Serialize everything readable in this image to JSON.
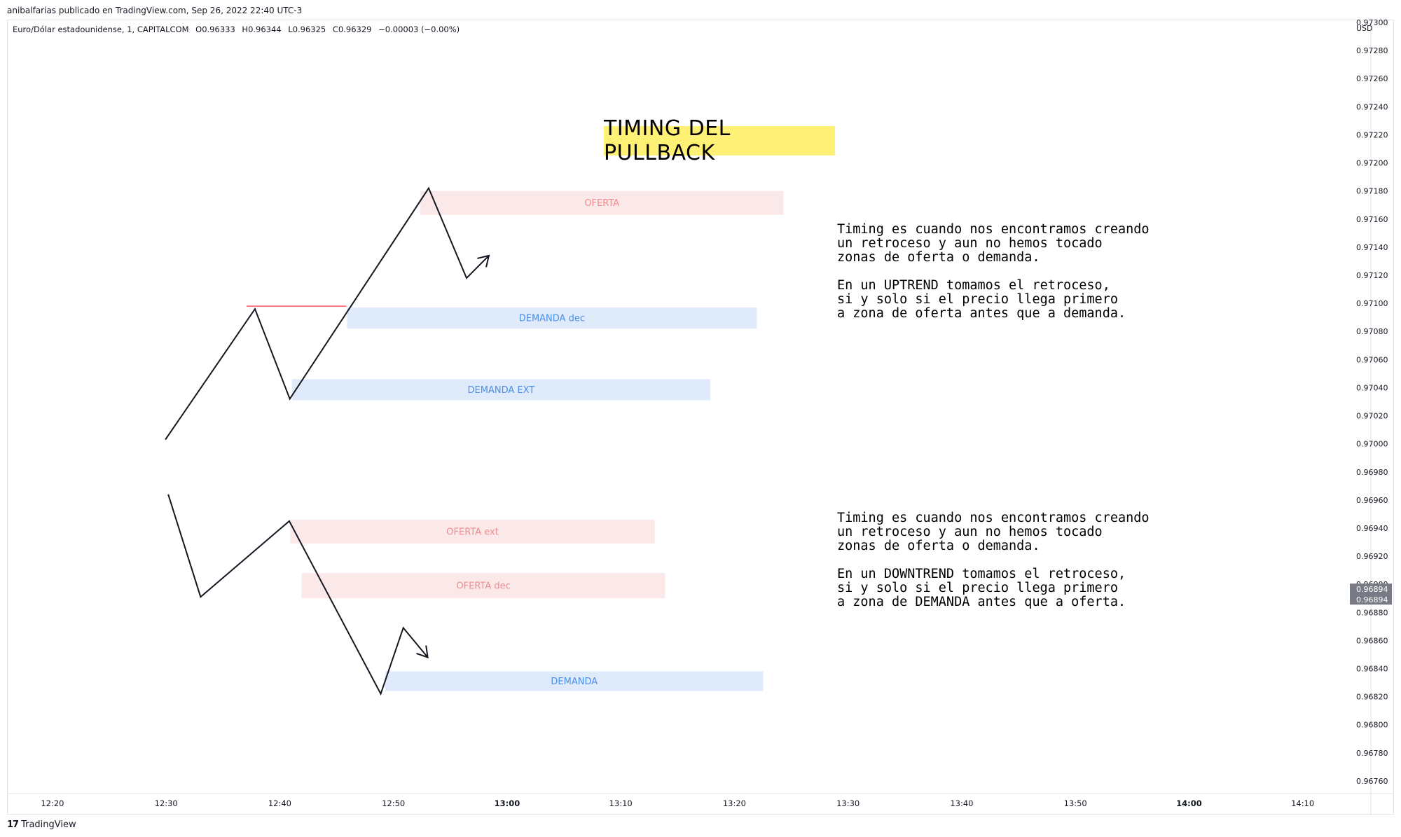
{
  "header": {
    "published": "anibalfarias publicado en TradingView.com, Sep 26, 2022 22:40 UTC-3",
    "symbol": "Euro/Dólar estadounidense, 1, CAPITALCOM",
    "open": "O0.96333",
    "high": "H0.96344",
    "low": "L0.96325",
    "close": "C0.96329",
    "change": "−0.00003 (−0.00%)"
  },
  "footer": {
    "logo_text": "TradingView"
  },
  "title": "TIMING DEL PULLBACK",
  "notes": {
    "uptrend": "Timing es cuando nos encontramos creando\nun retroceso y aun no hemos tocado\nzonas de oferta o demanda.\n\nEn un UPTREND tomamos el retroceso,\nsi y solo si el precio llega primero\na zona de oferta antes que a demanda.",
    "downtrend": "Timing es cuando nos encontramos creando\nun retroceso y aun no hemos tocado\nzonas de oferta o demanda.\n\nEn un DOWNTREND tomamos el retroceso,\nsi y solo si el precio llega primero\na zona de DEMANDA antes que a oferta."
  },
  "colors": {
    "supply_fill": "#fbe9ea",
    "supply_text": "#f28b8f",
    "demand_fill": "#dfeafb",
    "demand_text": "#4b8fe8",
    "line": "#131722",
    "hline": "#f23645",
    "price_badge": "#787b86"
  },
  "chart_data": {
    "type": "line",
    "currency": "USD",
    "x_range": [
      "12:16",
      "14:16"
    ],
    "x_ticks": [
      {
        "label": "12:20",
        "bold": false
      },
      {
        "label": "12:30",
        "bold": false
      },
      {
        "label": "12:40",
        "bold": false
      },
      {
        "label": "12:50",
        "bold": false
      },
      {
        "label": "13:00",
        "bold": true
      },
      {
        "label": "13:10",
        "bold": false
      },
      {
        "label": "13:20",
        "bold": false
      },
      {
        "label": "13:30",
        "bold": false
      },
      {
        "label": "13:40",
        "bold": false
      },
      {
        "label": "13:50",
        "bold": false
      },
      {
        "label": "14:00",
        "bold": true
      },
      {
        "label": "14:10",
        "bold": false
      }
    ],
    "y_range": [
      0.96751,
      0.97302
    ],
    "y_ticks": [
      "0.97300",
      "0.97280",
      "0.97260",
      "0.97240",
      "0.97220",
      "0.97200",
      "0.97180",
      "0.97160",
      "0.97140",
      "0.97120",
      "0.97100",
      "0.97080",
      "0.97060",
      "0.97040",
      "0.97020",
      "0.97000",
      "0.96980",
      "0.96960",
      "0.96940",
      "0.96920",
      "0.96900",
      "0.96880",
      "0.96860",
      "0.96840",
      "0.96820",
      "0.96800",
      "0.96780",
      "0.96760"
    ],
    "price_badges": [
      "0.96894",
      "0.96894"
    ],
    "price_badge_value": 0.96894,
    "series": [
      {
        "points": [
          {
            "x": "12:29:56",
            "y": 0.97003
          },
          {
            "x": "12:37:49",
            "y": 0.97096
          },
          {
            "x": "12:40:53",
            "y": 0.97032
          },
          {
            "x": "12:53:06",
            "y": 0.97182
          },
          {
            "x": "12:56:26",
            "y": 0.97118
          },
          {
            "x": "12:58:24",
            "y": 0.97134
          }
        ],
        "arrow": true
      },
      {
        "points": [
          {
            "x": "12:30:11",
            "y": 0.96964
          },
          {
            "x": "12:33:02",
            "y": 0.96891
          },
          {
            "x": "12:40:50",
            "y": 0.96945
          },
          {
            "x": "12:48:53",
            "y": 0.96822
          },
          {
            "x": "12:50:52",
            "y": 0.96869
          },
          {
            "x": "12:53:01",
            "y": 0.96848
          }
        ],
        "arrow": true
      }
    ],
    "hlines": [
      {
        "x_start": "12:37:05",
        "x_end": "12:45:51",
        "y": 0.97098
      }
    ],
    "zones": [
      {
        "label": "OFERTA",
        "kind": "supply",
        "x_start": "12:52:22",
        "x_end": "13:24:19",
        "y_top": 0.9718,
        "y_bottom": 0.97163
      },
      {
        "label": "DEMANDA dec",
        "kind": "demand",
        "x_start": "12:45:55",
        "x_end": "13:21:58",
        "y_top": 0.97097,
        "y_bottom": 0.97082
      },
      {
        "label": "DEMANDA EXT",
        "kind": "demand",
        "x_start": "12:41:04",
        "x_end": "13:17:53",
        "y_top": 0.97046,
        "y_bottom": 0.97031
      },
      {
        "label": "OFERTA ext",
        "kind": "supply",
        "x_start": "12:40:55",
        "x_end": "13:13:00",
        "y_top": 0.96946,
        "y_bottom": 0.96929
      },
      {
        "label": "OFERTA dec",
        "kind": "supply",
        "x_start": "12:41:55",
        "x_end": "13:13:55",
        "y_top": 0.96908,
        "y_bottom": 0.9689
      },
      {
        "label": "DEMANDA",
        "kind": "demand",
        "x_start": "12:49:17",
        "x_end": "13:22:32",
        "y_top": 0.96838,
        "y_bottom": 0.96824
      }
    ]
  }
}
